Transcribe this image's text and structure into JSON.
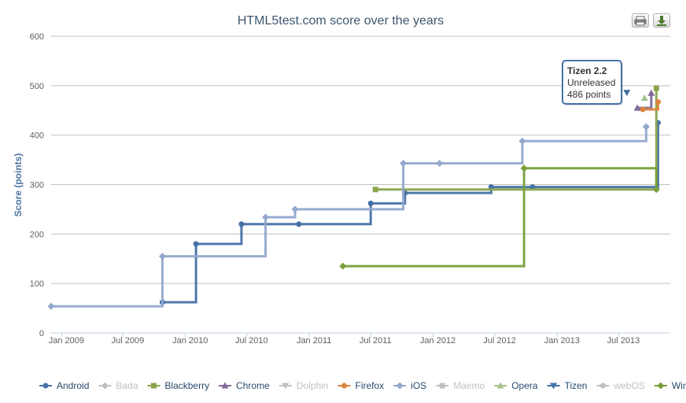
{
  "chart_data": {
    "type": "line",
    "title": "HTML5test.com score over the years",
    "ylabel": "Score (points)",
    "ylim": [
      0,
      600
    ],
    "yticks": [
      0,
      100,
      200,
      300,
      400,
      500,
      600
    ],
    "xlim": [
      "2008-12-01",
      "2013-11-30"
    ],
    "xticks": [
      {
        "date": "2009-01-01",
        "label": "Jan 2009"
      },
      {
        "date": "2009-07-01",
        "label": "Jul 2009"
      },
      {
        "date": "2010-01-01",
        "label": "Jan 2010"
      },
      {
        "date": "2010-07-01",
        "label": "Jul 2010"
      },
      {
        "date": "2011-01-01",
        "label": "Jan 2011"
      },
      {
        "date": "2011-07-01",
        "label": "Jul 2011"
      },
      {
        "date": "2012-01-01",
        "label": "Jan 2012"
      },
      {
        "date": "2012-07-01",
        "label": "Jul 2012"
      },
      {
        "date": "2013-01-01",
        "label": "Jan 2013"
      },
      {
        "date": "2013-07-01",
        "label": "Jul 2013"
      }
    ],
    "grid": true,
    "legend_position": "bottom",
    "series": [
      {
        "name": "Android",
        "color": "#4572a7",
        "marker": "circle",
        "visible": true,
        "points": [
          [
            "2009-10-25",
            62
          ],
          [
            "2010-02-01",
            180
          ],
          [
            "2010-06-15",
            220
          ],
          [
            "2010-12-01",
            220
          ],
          [
            "2011-07-01",
            262
          ],
          [
            "2011-10-10",
            283
          ],
          [
            "2012-06-20",
            295
          ],
          [
            "2012-10-20",
            295
          ],
          [
            "2013-10-25",
            425
          ]
        ]
      },
      {
        "name": "Bada",
        "color": "#aaaaaa",
        "marker": "diamond",
        "visible": false,
        "points": []
      },
      {
        "name": "Blackberry",
        "color": "#89a54e",
        "marker": "square",
        "visible": true,
        "points": [
          [
            "2011-07-15",
            290
          ],
          [
            "2013-10-20",
            495
          ]
        ]
      },
      {
        "name": "Chrome",
        "color": "#80699b",
        "marker": "triangle",
        "visible": true,
        "points": [
          [
            "2013-08-25",
            455
          ],
          [
            "2013-10-05",
            485
          ]
        ]
      },
      {
        "name": "Dolphin",
        "color": "#aaaaaa",
        "marker": "triangle-down",
        "visible": false,
        "points": []
      },
      {
        "name": "Firefox",
        "color": "#db843d",
        "marker": "circle",
        "visible": true,
        "points": [
          [
            "2013-09-10",
            452
          ],
          [
            "2013-10-25",
            467
          ]
        ]
      },
      {
        "name": "iOS",
        "color": "#92a8cd",
        "marker": "diamond",
        "visible": true,
        "points": [
          [
            "2008-12-01",
            54
          ],
          [
            "2009-10-25",
            155
          ],
          [
            "2010-08-25",
            234
          ],
          [
            "2010-11-20",
            250
          ],
          [
            "2011-10-05",
            343
          ],
          [
            "2012-01-20",
            343
          ],
          [
            "2012-09-20",
            388
          ],
          [
            "2013-09-20",
            417
          ]
        ]
      },
      {
        "name": "Maemo",
        "color": "#aaaaaa",
        "marker": "square",
        "visible": false,
        "points": []
      },
      {
        "name": "Opera",
        "color": "#a4c28a",
        "marker": "triangle",
        "visible": true,
        "points": [
          [
            "2013-09-15",
            475
          ]
        ]
      },
      {
        "name": "Tizen",
        "color": "#4572a7",
        "marker": "triangle-down",
        "visible": true,
        "points": [
          [
            "2013-07-25",
            486
          ]
        ]
      },
      {
        "name": "webOS",
        "color": "#aaaaaa",
        "marker": "circle",
        "visible": false,
        "points": []
      },
      {
        "name": "Windows",
        "color": "#77a03a",
        "marker": "diamond",
        "visible": true,
        "points": [
          [
            "2011-04-10",
            135
          ],
          [
            "2012-09-25",
            333
          ],
          [
            "2013-10-20",
            290
          ]
        ]
      }
    ],
    "annotations": [
      {
        "series": "Tizen",
        "title": "Tizen 2.2",
        "line1": "Unreleased",
        "line2": "486 points"
      }
    ]
  }
}
